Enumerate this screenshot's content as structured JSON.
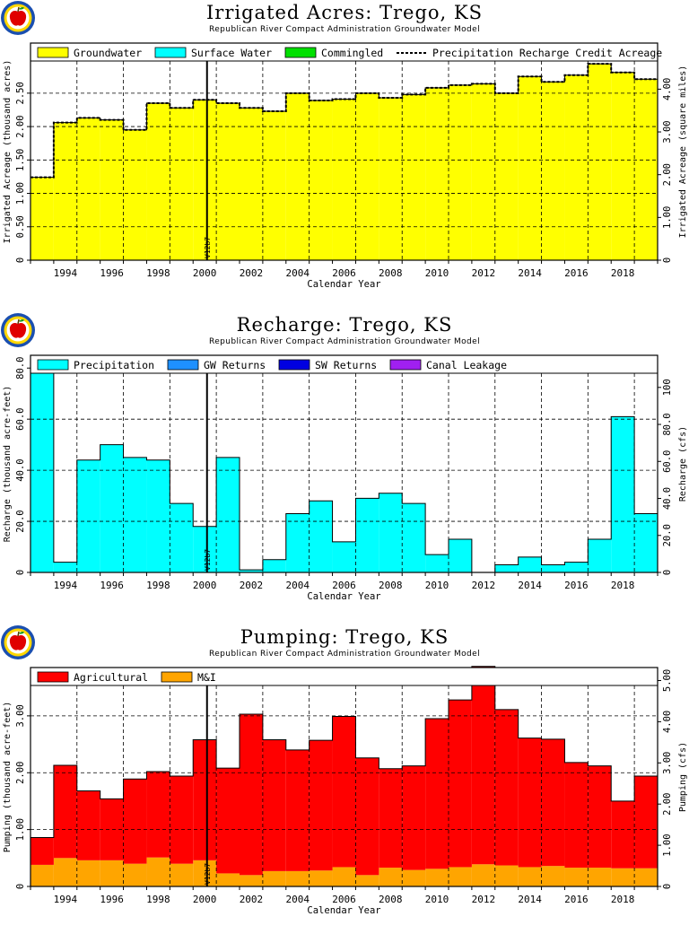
{
  "charts": [
    {
      "title": "Irrigated Acres: Trego, KS",
      "subtitle": "Republican River Compact Administration Groundwater Model",
      "ylabel": "Irrigated Acreage (thousand acres)",
      "y2label": "Irrigated Acreage (square miles)",
      "xlabel": "Calendar Year",
      "marker": "V12b7",
      "legend": [
        {
          "label": "Groundwater",
          "color": "#ffff00",
          "kind": "box"
        },
        {
          "label": "Surface Water",
          "color": "#00ffff",
          "kind": "box"
        },
        {
          "label": "Commingled",
          "color": "#00e000",
          "kind": "box"
        },
        {
          "label": "Precipitation Recharge Credit Acreage",
          "kind": "dash"
        }
      ]
    },
    {
      "title": "Recharge: Trego, KS",
      "subtitle": "Republican River Compact Administration Groundwater Model",
      "ylabel": "Recharge (thousand acre-feet)",
      "y2label": "Recharge (cfs)",
      "xlabel": "Calendar Year",
      "marker": "V12b7",
      "legend": [
        {
          "label": "Precipitation",
          "color": "#00ffff",
          "kind": "box"
        },
        {
          "label": "GW Returns",
          "color": "#1e90ff",
          "kind": "box"
        },
        {
          "label": "SW Returns",
          "color": "#0000e0",
          "kind": "box"
        },
        {
          "label": "Canal Leakage",
          "color": "#a020f0",
          "kind": "box"
        }
      ]
    },
    {
      "title": "Pumping: Trego, KS",
      "subtitle": "Republican River Compact Administration Groundwater Model",
      "ylabel": "Pumping (thousand acre-feet)",
      "y2label": "Pumping (cfs)",
      "xlabel": "Calendar Year",
      "marker": "V12b7",
      "legend": [
        {
          "label": "Agricultural",
          "color": "#ff0000",
          "kind": "box"
        },
        {
          "label": "M&I",
          "color": "#ffa500",
          "kind": "box"
        }
      ]
    }
  ],
  "chart_data": [
    {
      "type": "bar",
      "grid": true,
      "legend_position": "top",
      "x": [
        1993,
        1994,
        1995,
        1996,
        1997,
        1998,
        1999,
        2000,
        2001,
        2002,
        2003,
        2004,
        2005,
        2006,
        2007,
        2008,
        2009,
        2010,
        2011,
        2012,
        2013,
        2014,
        2015,
        2016,
        2017,
        2018,
        2019
      ],
      "xticks": [
        "1994",
        "1996",
        "1998",
        "2000",
        "2002",
        "2004",
        "2006",
        "2008",
        "2010",
        "2012",
        "2014",
        "2016",
        "2018"
      ],
      "xlim": [
        1992.5,
        2019.5
      ],
      "ylim": [
        0,
        3.25
      ],
      "yticks": [
        "0",
        "0.50",
        "1.00",
        "1.50",
        "2.00",
        "2.50"
      ],
      "y2ticks": [
        "0",
        "1.00",
        "2.00",
        "3.00",
        "4.00"
      ],
      "y2_per_y": 1.5625,
      "series": [
        {
          "name": "Groundwater",
          "color": "#ffff00",
          "values": [
            1.24,
            2.06,
            2.13,
            2.1,
            1.95,
            2.35,
            2.28,
            2.4,
            2.35,
            2.28,
            2.23,
            2.5,
            2.39,
            2.41,
            2.5,
            2.43,
            2.48,
            2.58,
            2.62,
            2.64,
            2.5,
            2.75,
            2.67,
            2.77,
            2.94,
            2.81,
            2.71
          ]
        },
        {
          "name": "Surface Water",
          "color": "#00ffff",
          "values": [
            0,
            0,
            0,
            0,
            0,
            0,
            0,
            0,
            0,
            0,
            0,
            0,
            0,
            0,
            0,
            0,
            0,
            0,
            0,
            0,
            0,
            0,
            0,
            0,
            0,
            0,
            0
          ]
        },
        {
          "name": "Commingled",
          "color": "#00e000",
          "values": [
            0,
            0,
            0,
            0,
            0,
            0,
            0,
            0,
            0,
            0,
            0,
            0,
            0,
            0,
            0,
            0,
            0,
            0,
            0,
            0,
            0,
            0,
            0,
            0,
            0,
            0,
            0
          ]
        },
        {
          "name": "Precipitation Recharge Credit Acreage",
          "kind": "dash",
          "values": [
            1.24,
            2.06,
            2.13,
            2.1,
            1.95,
            2.35,
            2.28,
            2.4,
            2.35,
            2.28,
            2.23,
            2.5,
            2.39,
            2.41,
            2.5,
            2.43,
            2.48,
            2.58,
            2.62,
            2.64,
            2.5,
            2.75,
            2.67,
            2.77,
            2.94,
            2.81,
            2.71
          ]
        }
      ]
    },
    {
      "type": "bar",
      "grid": true,
      "legend_position": "top",
      "x": [
        1993,
        1994,
        1995,
        1996,
        1997,
        1998,
        1999,
        2000,
        2001,
        2002,
        2003,
        2004,
        2005,
        2006,
        2007,
        2008,
        2009,
        2010,
        2011,
        2012,
        2013,
        2014,
        2015,
        2016,
        2017,
        2018,
        2019
      ],
      "xticks": [
        "1994",
        "1996",
        "1998",
        "2000",
        "2002",
        "2004",
        "2006",
        "2008",
        "2010",
        "2012",
        "2014",
        "2016",
        "2018"
      ],
      "xlim": [
        1992.5,
        2019.5
      ],
      "ylim": [
        0,
        85
      ],
      "yticks": [
        "0",
        "20.0",
        "40.0",
        "60.0",
        "80.0"
      ],
      "y2ticks": [
        "0",
        "20.0",
        "40.0",
        "60.0",
        "80.0",
        "100"
      ],
      "y2_per_y": 1.3807,
      "series": [
        {
          "name": "Precipitation",
          "color": "#00ffff",
          "values": [
            81,
            4,
            44,
            50,
            45,
            44,
            27,
            18,
            45,
            1,
            5,
            23,
            28,
            12,
            29,
            31,
            27,
            7,
            13,
            0,
            3,
            6,
            3,
            4,
            13,
            61,
            23
          ]
        },
        {
          "name": "GW Returns",
          "color": "#1e90ff",
          "values": [
            0,
            0,
            0,
            0,
            0,
            0,
            0,
            0,
            0,
            0,
            0,
            0,
            0,
            0,
            0,
            0,
            0,
            0,
            0,
            0,
            0,
            0,
            0,
            0,
            0,
            0,
            0
          ]
        },
        {
          "name": "SW Returns",
          "color": "#0000e0",
          "values": [
            0,
            0,
            0,
            0,
            0,
            0,
            0,
            0,
            0,
            0,
            0,
            0,
            0,
            0,
            0,
            0,
            0,
            0,
            0,
            0,
            0,
            0,
            0,
            0,
            0,
            0,
            0
          ]
        },
        {
          "name": "Canal Leakage",
          "color": "#a020f0",
          "values": [
            0,
            0,
            0,
            0,
            0,
            0,
            0,
            0,
            0,
            0,
            0,
            0,
            0,
            0,
            0,
            0,
            0,
            0,
            0,
            0,
            0,
            0,
            0,
            0,
            0,
            0,
            0
          ]
        }
      ]
    },
    {
      "type": "bar",
      "grid": true,
      "legend_position": "top",
      "x": [
        1993,
        1994,
        1995,
        1996,
        1997,
        1998,
        1999,
        2000,
        2001,
        2002,
        2003,
        2004,
        2005,
        2006,
        2007,
        2008,
        2009,
        2010,
        2011,
        2012,
        2013,
        2014,
        2015,
        2016,
        2017,
        2018,
        2019
      ],
      "xticks": [
        "1994",
        "1996",
        "1998",
        "2000",
        "2002",
        "2004",
        "2006",
        "2008",
        "2010",
        "2012",
        "2014",
        "2016",
        "2018"
      ],
      "xlim": [
        1992.5,
        2019.5
      ],
      "ylim": [
        0,
        3.85
      ],
      "yticks": [
        "0",
        "1.00",
        "2.00",
        "3.00"
      ],
      "y2ticks": [
        "0",
        "1.00",
        "2.00",
        "3.00",
        "4.00",
        "5.00"
      ],
      "y2_per_y": 1.3807,
      "series": [
        {
          "name": "M&I",
          "color": "#ffa500",
          "values": [
            0.38,
            0.5,
            0.46,
            0.46,
            0.4,
            0.51,
            0.4,
            0.46,
            0.23,
            0.2,
            0.27,
            0.27,
            0.28,
            0.34,
            0.2,
            0.33,
            0.29,
            0.31,
            0.34,
            0.39,
            0.37,
            0.34,
            0.36,
            0.33,
            0.33,
            0.32,
            0.32
          ]
        },
        {
          "name": "Agricultural",
          "color": "#ff0000",
          "values": [
            0.48,
            1.63,
            1.22,
            1.08,
            1.49,
            1.51,
            1.54,
            2.12,
            1.85,
            2.83,
            2.31,
            2.13,
            2.29,
            2.65,
            2.06,
            1.74,
            1.83,
            2.64,
            2.94,
            3.48,
            2.74,
            2.27,
            2.23,
            1.85,
            1.79,
            1.18,
            1.62
          ]
        }
      ]
    }
  ]
}
